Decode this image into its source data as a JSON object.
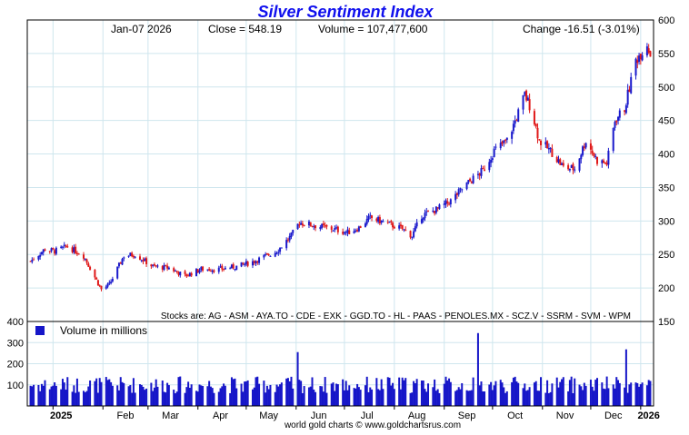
{
  "title": "Silver Sentiment Index",
  "colors": {
    "title": "#1010ee",
    "up_candle": "#1a1acc",
    "down_candle": "#e01818",
    "volume_bar": "#1616c8",
    "grid": "#cfe6ee",
    "frame": "#000000"
  },
  "info": {
    "date": "Jan-07  2026",
    "close": "Close = 548.19",
    "volume": "Volume = 107,477,600",
    "change": "Change -16.51 (-3.01%)"
  },
  "stocks_text": "Stocks are: AG - ASM - AYA.TO - CDE - EXK - GGD.TO - HL - PAAS - PENOLES.MX - SCZ.V - SSRM - SVM - WPM",
  "volume_legend": "Volume in millions",
  "footer": "world gold charts © www.goldchartsrus.com",
  "chart_data": [
    {
      "type": "candlestick",
      "title": "Silver Sentiment Index",
      "ylim": [
        150,
        600
      ],
      "y_ticks": [
        "150",
        "200",
        "250",
        "300",
        "350",
        "400",
        "450",
        "500",
        "550",
        "600"
      ],
      "x_tick_labels": [
        "2025",
        "Feb",
        "Mar",
        "Apr",
        "May",
        "Jun",
        "Jul",
        "Aug",
        "Sep",
        "Oct",
        "Nov",
        "Dec",
        "2026"
      ],
      "grid": true,
      "series": [
        {
          "approx_close_path": [
            {
              "x": "2024-12-18",
              "y": 240
            },
            {
              "x": "2024-12-27",
              "y": 258
            },
            {
              "x": "2025-01-02",
              "y": 255
            },
            {
              "x": "2025-01-10",
              "y": 262
            },
            {
              "x": "2025-01-20",
              "y": 248
            },
            {
              "x": "2025-01-31",
              "y": 198
            },
            {
              "x": "2025-02-05",
              "y": 205
            },
            {
              "x": "2025-02-14",
              "y": 248
            },
            {
              "x": "2025-02-21",
              "y": 250
            },
            {
              "x": "2025-03-04",
              "y": 232
            },
            {
              "x": "2025-03-14",
              "y": 230
            },
            {
              "x": "2025-03-24",
              "y": 218
            },
            {
              "x": "2025-04-03",
              "y": 228
            },
            {
              "x": "2025-04-14",
              "y": 228
            },
            {
              "x": "2025-04-25",
              "y": 232
            },
            {
              "x": "2025-05-06",
              "y": 240
            },
            {
              "x": "2025-05-20",
              "y": 255
            },
            {
              "x": "2025-05-29",
              "y": 278
            },
            {
              "x": "2025-06-03",
              "y": 298
            },
            {
              "x": "2025-06-13",
              "y": 293
            },
            {
              "x": "2025-06-24",
              "y": 288
            },
            {
              "x": "2025-07-03",
              "y": 283
            },
            {
              "x": "2025-07-10",
              "y": 290
            },
            {
              "x": "2025-07-17",
              "y": 305
            },
            {
              "x": "2025-07-28",
              "y": 296
            },
            {
              "x": "2025-08-06",
              "y": 288
            },
            {
              "x": "2025-08-12",
              "y": 278
            },
            {
              "x": "2025-08-18",
              "y": 308
            },
            {
              "x": "2025-08-28",
              "y": 318
            },
            {
              "x": "2025-09-05",
              "y": 330
            },
            {
              "x": "2025-09-15",
              "y": 355
            },
            {
              "x": "2025-09-25",
              "y": 375
            },
            {
              "x": "2025-10-02",
              "y": 405
            },
            {
              "x": "2025-10-10",
              "y": 420
            },
            {
              "x": "2025-10-16",
              "y": 455
            },
            {
              "x": "2025-10-21",
              "y": 488
            },
            {
              "x": "2025-10-25",
              "y": 468
            },
            {
              "x": "2025-10-30",
              "y": 420
            },
            {
              "x": "2025-11-07",
              "y": 402
            },
            {
              "x": "2025-11-14",
              "y": 380
            },
            {
              "x": "2025-11-21",
              "y": 378
            },
            {
              "x": "2025-11-28",
              "y": 420
            },
            {
              "x": "2025-12-05",
              "y": 390
            },
            {
              "x": "2025-12-11",
              "y": 386
            },
            {
              "x": "2025-12-16",
              "y": 450
            },
            {
              "x": "2025-12-22",
              "y": 468
            },
            {
              "x": "2025-12-29",
              "y": 540
            },
            {
              "x": "2026-01-05",
              "y": 565
            },
            {
              "x": "2026-01-07",
              "y": 548.19
            }
          ]
        }
      ]
    },
    {
      "type": "bar",
      "title": "Volume in millions",
      "ylim": [
        0,
        400
      ],
      "y_ticks": [
        "100",
        "200",
        "300",
        "400"
      ],
      "notable_spikes": [
        {
          "x": "2025-06-02",
          "y": 255
        },
        {
          "x": "2025-09-22",
          "y": 345
        },
        {
          "x": "2025-12-23",
          "y": 268
        }
      ],
      "typical_range": [
        60,
        140
      ]
    }
  ]
}
